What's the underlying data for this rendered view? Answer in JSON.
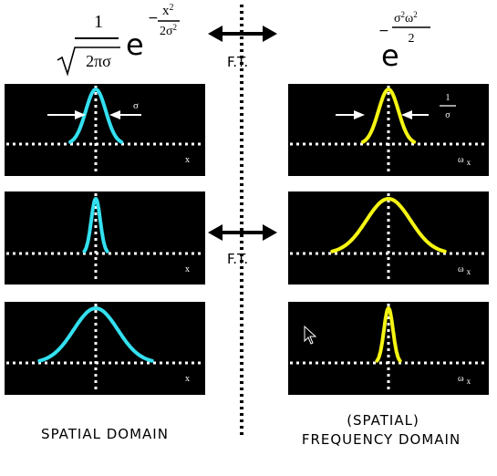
{
  "formulas": {
    "left": {
      "coefficient_numerator": "1",
      "coefficient_denominator": "2πσ",
      "base": "e",
      "exponent_sign": "−",
      "exponent_numerator": "x2",
      "exponent_denominator": "2σ2"
    },
    "right": {
      "base": "e",
      "exponent_sign": "−",
      "exponent_numerator": "σ2ω2",
      "exponent_denominator": "2"
    }
  },
  "ft_labels": [
    "F.T.",
    "F.T."
  ],
  "left_column": {
    "caption": "SPATIAL DOMAIN",
    "rows": [
      {
        "axis_label": "x",
        "width_label": "σ",
        "relative_width": 1.0
      },
      {
        "axis_label": "x",
        "relative_width": 0.45
      },
      {
        "axis_label": "x",
        "relative_width": 2.2
      }
    ]
  },
  "right_column": {
    "caption_line1": "(SPATIAL)",
    "caption_line2": "FREQUENCY DOMAIN",
    "rows": [
      {
        "axis_label": "ω",
        "axis_subscript": "x",
        "width_label_num": "1",
        "width_label_den": "σ",
        "relative_width": 1.0
      },
      {
        "axis_label": "ω",
        "axis_subscript": "x",
        "relative_width": 2.2
      },
      {
        "axis_label": "ω",
        "axis_subscript": "x",
        "relative_width": 0.45
      }
    ]
  },
  "colors": {
    "spatial_curve": "#33e0f0",
    "frequency_curve": "#f5f514",
    "panel_bg": "#000000",
    "axis": "#ffffff"
  }
}
